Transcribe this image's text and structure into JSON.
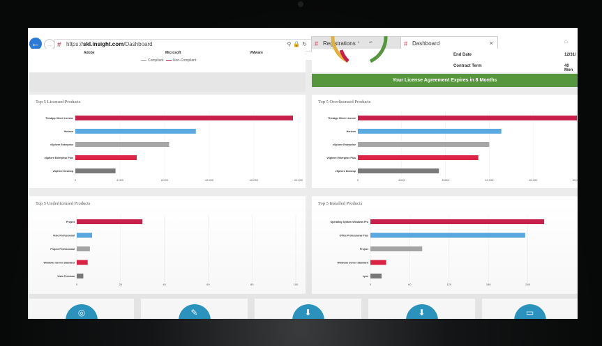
{
  "browser": {
    "url_prefix": "https://",
    "url_host": "skl.insight.com",
    "url_path": "/Dashboard",
    "tabs": [
      {
        "label": "Registrations",
        "active": false
      },
      {
        "label": "Dashboard",
        "active": true
      }
    ],
    "tab_close": "×"
  },
  "top_left": {
    "vendors": [
      "Adobe",
      "Microsoft",
      "VMware"
    ],
    "legend": [
      {
        "label": "Compliant",
        "color": "#9a9a9a"
      },
      {
        "label": "Non-Compliant",
        "color": "#c8204a"
      }
    ]
  },
  "top_right": {
    "end_date_label": "End Date",
    "end_date_value": "12/31/",
    "contract_term_label": "Contract Term",
    "contract_term_value": "40 Mon",
    "banner": "Your License Agreement Expires in 8 Months"
  },
  "colors": {
    "crimson": "#c8204a",
    "blue": "#5aa9e0",
    "light_gray": "#a6a6a6",
    "red": "#dc2446",
    "dark_gray": "#7a7a7a",
    "green": "#56963d",
    "tile_blue": "#2c98c4"
  },
  "chart_data": [
    {
      "type": "bar",
      "orientation": "horizontal",
      "title": "Top 5 Licensed Products",
      "categories": [
        "ThinApp Client License",
        "Horizon",
        "vSphere Enterprise",
        "vSphere Enterprise Plus",
        "vSphere Desktop"
      ],
      "values": [
        19500,
        10800,
        8400,
        5500,
        3600
      ],
      "bar_colors": [
        "#c8204a",
        "#5aa9e0",
        "#a6a6a6",
        "#dc2446",
        "#7a7a7a"
      ],
      "xlim": [
        0,
        20000
      ],
      "ticks": [
        "0",
        "4,000",
        "8,000",
        "12,000",
        "16,000",
        "20,000"
      ]
    },
    {
      "type": "bar",
      "orientation": "horizontal",
      "title": "Top 5 Overlicensed Products",
      "categories": [
        "ThinApp Client License",
        "Horizon",
        "vSphere Enterprise",
        "vSphere Enterprise Plus",
        "vSphere Desktop"
      ],
      "values": [
        20000,
        13100,
        12000,
        11000,
        7400
      ],
      "bar_colors": [
        "#c8204a",
        "#5aa9e0",
        "#a6a6a6",
        "#dc2446",
        "#7a7a7a"
      ],
      "xlim": [
        0,
        20000
      ],
      "ticks": [
        "0",
        "4,000",
        "8,000",
        "12,000",
        "16,000",
        "20,000"
      ]
    },
    {
      "type": "bar",
      "orientation": "horizontal",
      "title": "Top 5 Underlicensed Products",
      "categories": [
        "Project",
        "Visio Professional",
        "Project Professional",
        "Windows Server Standard",
        "Visio Premium"
      ],
      "values": [
        30,
        7,
        6,
        5,
        3
      ],
      "bar_colors": [
        "#c8204a",
        "#5aa9e0",
        "#a6a6a6",
        "#dc2446",
        "#7a7a7a"
      ],
      "xlim": [
        0,
        100
      ],
      "ticks": [
        "0",
        "20",
        "40",
        "60",
        "80",
        "100"
      ]
    },
    {
      "type": "bar",
      "orientation": "horizontal",
      "title": "Top 5 Installed Products",
      "categories": [
        "Operating System Windows Pro",
        "Office Professional Plus",
        "Project",
        "Windows Server Standard",
        "Lync"
      ],
      "values": [
        265,
        236,
        79,
        24,
        17
      ],
      "bar_colors": [
        "#c8204a",
        "#5aa9e0",
        "#a6a6a6",
        "#dc2446",
        "#7a7a7a"
      ],
      "xlim": [
        0,
        300
      ],
      "ticks": [
        "0",
        "60",
        "120",
        "180",
        "240"
      ]
    }
  ],
  "tiles": [
    {
      "icon": "eye-icon",
      "glyph": "◎"
    },
    {
      "icon": "pencil-icon",
      "glyph": "✎"
    },
    {
      "icon": "download-icon",
      "glyph": "⬇"
    },
    {
      "icon": "download-icon",
      "glyph": "⬇"
    },
    {
      "icon": "monitor-icon",
      "glyph": "▭"
    }
  ]
}
